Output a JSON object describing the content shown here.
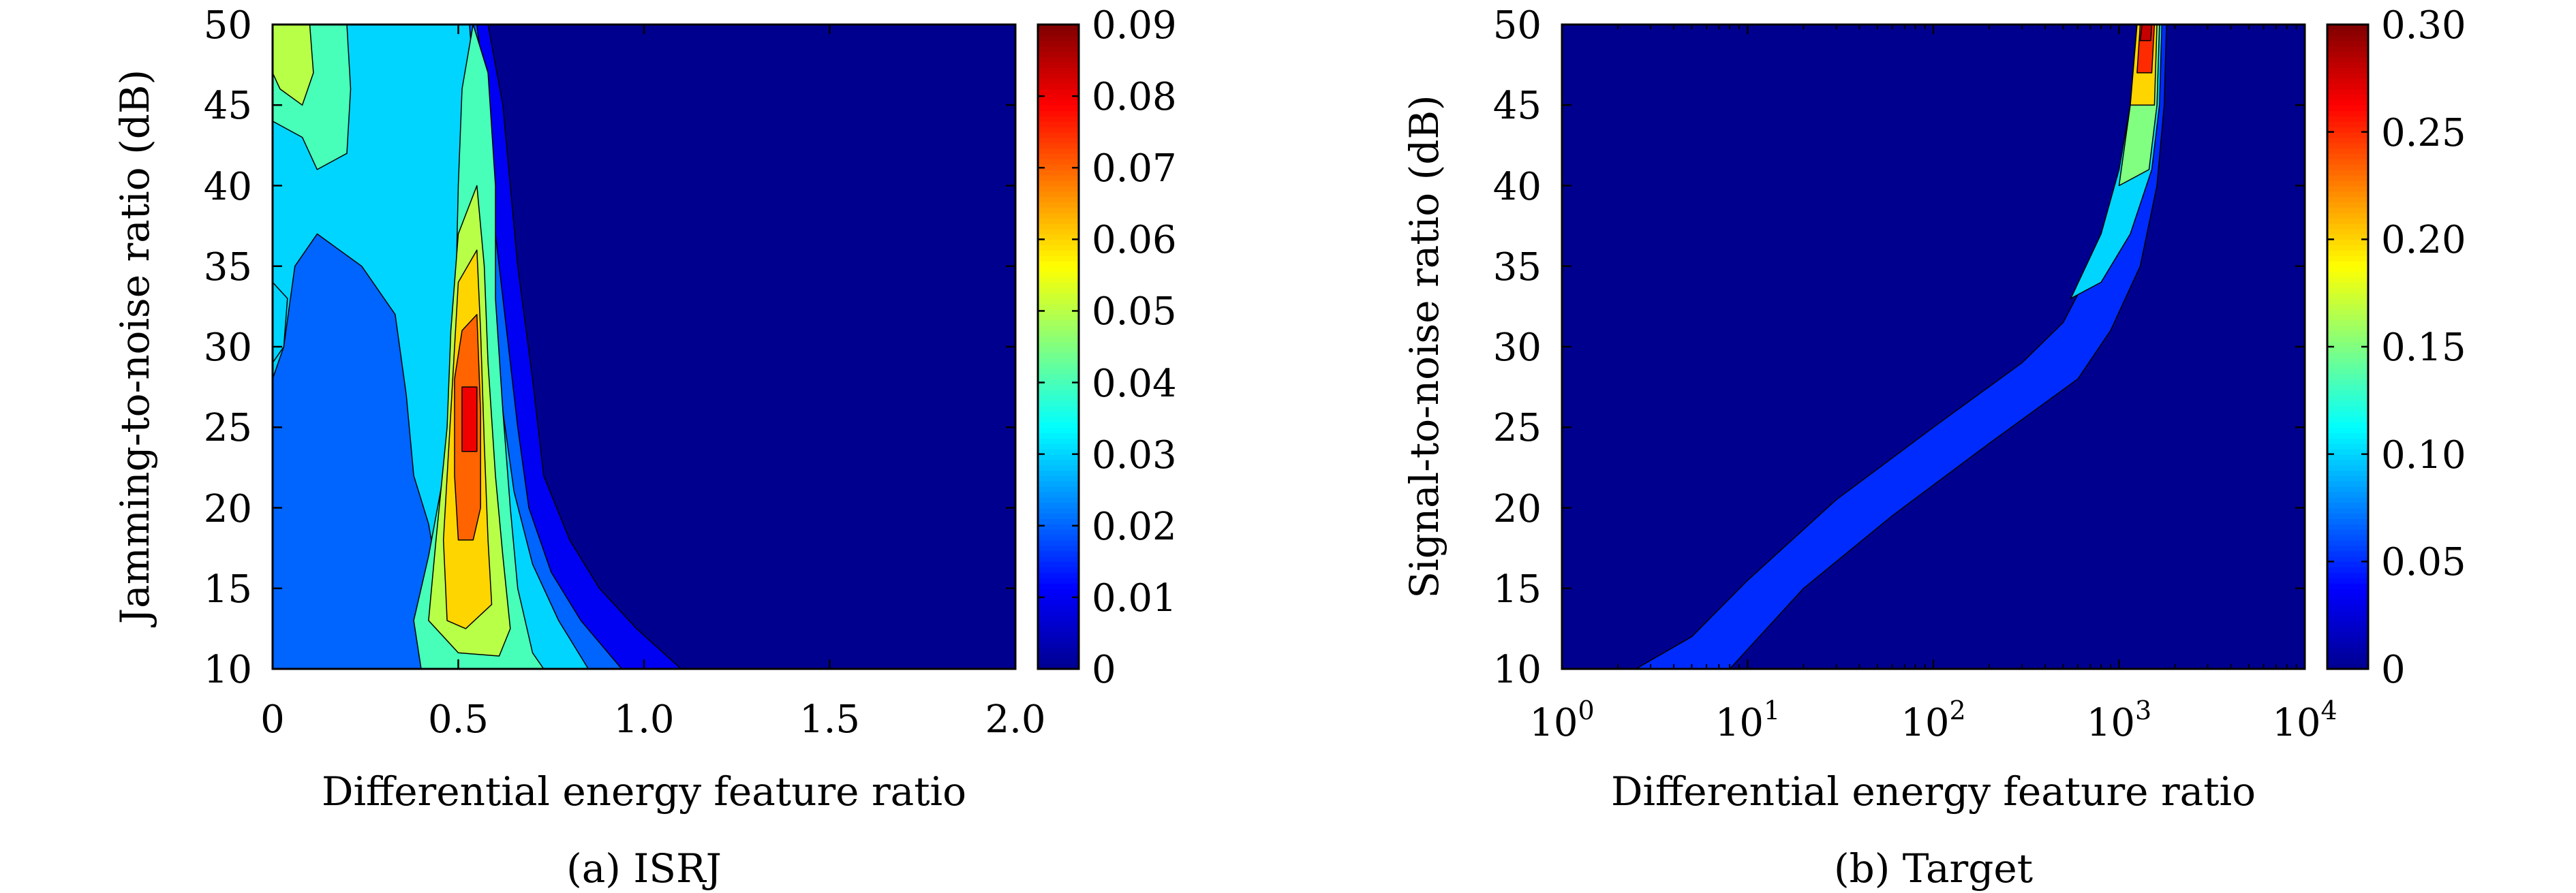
{
  "colormap": [
    "#00008f",
    "#0000ff",
    "#0080ff",
    "#00ffff",
    "#80ff80",
    "#ffff00",
    "#ff8000",
    "#ff0000",
    "#800000"
  ],
  "chart_data": [
    {
      "id": "a",
      "type": "heatmap",
      "subtype": "filled-contour",
      "caption": "(a) ISRJ",
      "xlabel": "Differential energy feature ratio",
      "ylabel": "Jamming-to-noise ratio (dB)",
      "xscale": "linear",
      "xlim": [
        0,
        2.0
      ],
      "ylim": [
        10,
        50
      ],
      "xticks": [
        0,
        0.5,
        1.0,
        1.5,
        2.0
      ],
      "xticklabels": [
        "0",
        "0.5",
        "1.0",
        "1.5",
        "2.0"
      ],
      "yticks": [
        10,
        15,
        20,
        25,
        30,
        35,
        40,
        45,
        50
      ],
      "yticklabels": [
        "10",
        "15",
        "20",
        "25",
        "30",
        "35",
        "40",
        "45",
        "50"
      ],
      "colorbar": {
        "range": [
          0,
          0.09
        ],
        "ticks": [
          0,
          0.01,
          0.02,
          0.03,
          0.04,
          0.05,
          0.06,
          0.07,
          0.08,
          0.09
        ],
        "ticklabels": [
          "0",
          "0.01",
          "0.02",
          "0.03",
          "0.04",
          "0.05",
          "0.06",
          "0.07",
          "0.08",
          "0.09"
        ]
      },
      "levels": [
        {
          "level": 0.01,
          "polygons": [
            [
              [
                0,
                50
              ],
              [
                0.58,
                50
              ],
              [
                0.62,
                45
              ],
              [
                0.66,
                35
              ],
              [
                0.7,
                28
              ],
              [
                0.73,
                22
              ],
              [
                0.8,
                18
              ],
              [
                0.88,
                15
              ],
              [
                0.98,
                12.5
              ],
              [
                1.1,
                10
              ],
              [
                0,
                10
              ]
            ]
          ]
        },
        {
          "level": 0.02,
          "polygons": [
            [
              [
                0,
                50
              ],
              [
                0.55,
                50
              ],
              [
                0.58,
                44
              ],
              [
                0.6,
                37
              ],
              [
                0.63,
                31
              ],
              [
                0.66,
                25
              ],
              [
                0.69,
                20
              ],
              [
                0.75,
                16
              ],
              [
                0.83,
                13
              ],
              [
                0.94,
                10
              ],
              [
                0,
                10
              ]
            ]
          ]
        },
        {
          "level": 0.03,
          "polygons": [
            [
              [
                0,
                50
              ],
              [
                0.53,
                50
              ],
              [
                0.55,
                44
              ],
              [
                0.57,
                38
              ],
              [
                0.6,
                32
              ],
              [
                0.62,
                26
              ],
              [
                0.65,
                21
              ],
              [
                0.7,
                16.5
              ],
              [
                0.77,
                13
              ],
              [
                0.85,
                10
              ],
              [
                0.55,
                10
              ],
              [
                0.5,
                12
              ],
              [
                0.45,
                15
              ],
              [
                0.42,
                19
              ],
              [
                0.38,
                22
              ],
              [
                0.36,
                27
              ],
              [
                0.33,
                32
              ],
              [
                0.24,
                35
              ],
              [
                0.12,
                37
              ],
              [
                0.06,
                35
              ],
              [
                0.03,
                30
              ],
              [
                0,
                28
              ]
            ],
            [
              [
                0,
                34
              ],
              [
                0.04,
                33
              ],
              [
                0.03,
                30
              ],
              [
                0,
                29
              ]
            ]
          ]
        },
        {
          "level": 0.04,
          "polygons": [
            [
              [
                0.54,
                50
              ],
              [
                0.58,
                47
              ],
              [
                0.6,
                40
              ],
              [
                0.6,
                33
              ],
              [
                0.62,
                26
              ],
              [
                0.64,
                20
              ],
              [
                0.66,
                15
              ],
              [
                0.7,
                11
              ],
              [
                0.73,
                10
              ],
              [
                0.4,
                10
              ],
              [
                0.38,
                13
              ],
              [
                0.42,
                17
              ],
              [
                0.46,
                22
              ],
              [
                0.49,
                30
              ],
              [
                0.5,
                40
              ],
              [
                0.51,
                46
              ]
            ],
            [
              [
                0,
                50
              ],
              [
                0.2,
                50
              ],
              [
                0.21,
                46
              ],
              [
                0.2,
                42
              ],
              [
                0.12,
                41
              ],
              [
                0.08,
                43
              ],
              [
                0,
                44
              ]
            ]
          ]
        },
        {
          "level": 0.05,
          "polygons": [
            [
              [
                0.5,
                37
              ],
              [
                0.55,
                40
              ],
              [
                0.57,
                35
              ],
              [
                0.58,
                29
              ],
              [
                0.6,
                22
              ],
              [
                0.62,
                17
              ],
              [
                0.64,
                12.5
              ],
              [
                0.61,
                10.8
              ],
              [
                0.5,
                11
              ],
              [
                0.42,
                13
              ],
              [
                0.44,
                18
              ],
              [
                0.47,
                25
              ],
              [
                0.48,
                31
              ]
            ],
            [
              [
                0,
                50
              ],
              [
                0.1,
                50
              ],
              [
                0.11,
                47
              ],
              [
                0.08,
                45
              ],
              [
                0.02,
                46
              ],
              [
                0,
                47
              ]
            ]
          ]
        },
        {
          "level": 0.06,
          "polygons": [
            [
              [
                0.5,
                34
              ],
              [
                0.55,
                36
              ],
              [
                0.56,
                31
              ],
              [
                0.57,
                24
              ],
              [
                0.58,
                18
              ],
              [
                0.59,
                14
              ],
              [
                0.52,
                12.5
              ],
              [
                0.47,
                13
              ],
              [
                0.46,
                18
              ],
              [
                0.48,
                26
              ]
            ]
          ]
        },
        {
          "level": 0.07,
          "polygons": [
            [
              [
                0.51,
                31
              ],
              [
                0.55,
                32
              ],
              [
                0.56,
                26
              ],
              [
                0.56,
                20
              ],
              [
                0.54,
                18
              ],
              [
                0.5,
                18
              ],
              [
                0.49,
                22
              ],
              [
                0.49,
                28
              ]
            ]
          ]
        },
        {
          "level": 0.08,
          "polygons": [
            [
              [
                0.51,
                27.5
              ],
              [
                0.55,
                27.5
              ],
              [
                0.55,
                23.5
              ],
              [
                0.51,
                23.5
              ]
            ]
          ]
        }
      ]
    },
    {
      "id": "b",
      "type": "heatmap",
      "subtype": "filled-contour",
      "caption": "(b) Target",
      "xlabel": "Differential energy feature ratio",
      "ylabel": "Signal-to-noise ratio (dB)",
      "xscale": "log",
      "xlim": [
        1,
        10000
      ],
      "ylim": [
        10,
        50
      ],
      "xticks": [
        1,
        10,
        100,
        1000,
        10000
      ],
      "xtickbase": "10",
      "xtickexp": [
        "0",
        "1",
        "2",
        "3",
        "4"
      ],
      "yticks": [
        10,
        15,
        20,
        25,
        30,
        35,
        40,
        45,
        50
      ],
      "yticklabels": [
        "10",
        "15",
        "20",
        "25",
        "30",
        "35",
        "40",
        "45",
        "50"
      ],
      "colorbar": {
        "range": [
          0,
          0.3
        ],
        "ticks": [
          0,
          0.05,
          0.1,
          0.15,
          0.2,
          0.25,
          0.3
        ],
        "ticklabels": [
          "0",
          "0.05",
          "0.10",
          "0.15",
          "0.20",
          "0.25",
          "0.30"
        ]
      },
      "levels": [
        {
          "level": 0.05,
          "polygons": [
            [
              [
                2.5,
                10
              ],
              [
                5,
                12
              ],
              [
                10,
                15.5
              ],
              [
                30,
                20.5
              ],
              [
                100,
                25
              ],
              [
                300,
                29
              ],
              [
                500,
                31.5
              ],
              [
                800,
                36
              ],
              [
                1000,
                40
              ],
              [
                1150,
                45
              ],
              [
                1250,
                50
              ],
              [
                1800,
                50
              ],
              [
                1750,
                45
              ],
              [
                1600,
                40
              ],
              [
                1300,
                35
              ],
              [
                900,
                31
              ],
              [
                600,
                28
              ],
              [
                200,
                24
              ],
              [
                60,
                19.5
              ],
              [
                20,
                15
              ],
              [
                8,
                10
              ]
            ]
          ]
        },
        {
          "level": 0.1,
          "polygons": [
            [
              [
                550,
                33
              ],
              [
                800,
                37
              ],
              [
                1000,
                41
              ],
              [
                1150,
                45
              ],
              [
                1250,
                50
              ],
              [
                1700,
                50
              ],
              [
                1650,
                45
              ],
              [
                1500,
                41
              ],
              [
                1150,
                37
              ],
              [
                800,
                34
              ]
            ]
          ]
        },
        {
          "level": 0.15,
          "polygons": [
            [
              [
                1000,
                40
              ],
              [
                1150,
                45
              ],
              [
                1250,
                50
              ],
              [
                1650,
                50
              ],
              [
                1600,
                45
              ],
              [
                1450,
                41
              ]
            ]
          ]
        },
        {
          "level": 0.2,
          "polygons": [
            [
              [
                1150,
                45
              ],
              [
                1250,
                50
              ],
              [
                1600,
                50
              ],
              [
                1550,
                45
              ]
            ]
          ]
        },
        {
          "level": 0.25,
          "polygons": [
            [
              [
                1250,
                47
              ],
              [
                1300,
                50
              ],
              [
                1550,
                50
              ],
              [
                1500,
                47
              ]
            ]
          ]
        },
        {
          "level": 0.28,
          "polygons": [
            [
              [
                1300,
                49
              ],
              [
                1330,
                50
              ],
              [
                1500,
                50
              ],
              [
                1480,
                49
              ]
            ]
          ]
        }
      ]
    }
  ]
}
